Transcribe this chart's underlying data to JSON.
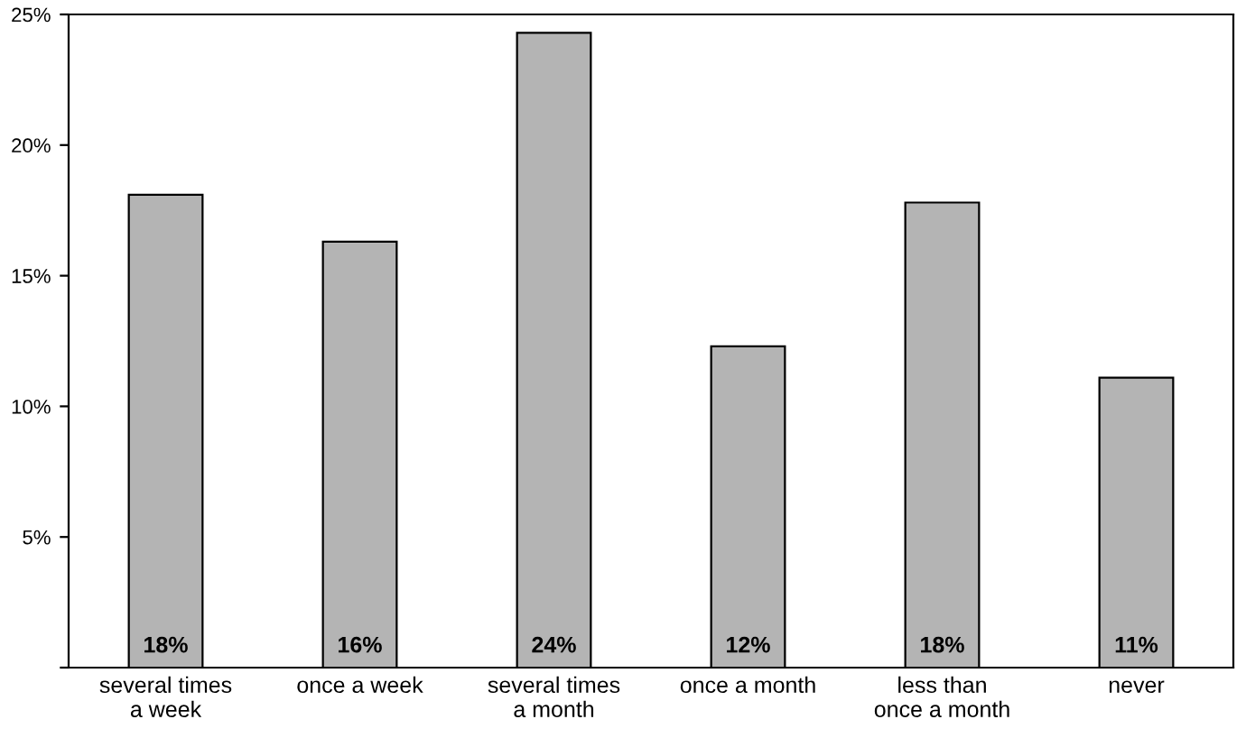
{
  "chart_data": {
    "type": "bar",
    "categories": [
      "several times\na week",
      "once a week",
      "several times\na month",
      "once a month",
      "less than\nonce a month",
      "never"
    ],
    "values": [
      18.1,
      16.3,
      24.3,
      12.3,
      17.8,
      11.1
    ],
    "value_labels": [
      "18%",
      "16%",
      "24%",
      "12%",
      "18%",
      "11%"
    ],
    "color": "#b4b4b4",
    "ylim": [
      0,
      25
    ],
    "yticks": [
      {
        "value": 0,
        "label": null
      },
      {
        "value": 5,
        "label": "5%"
      },
      {
        "value": 10,
        "label": "10%"
      },
      {
        "value": 15,
        "label": "15%"
      },
      {
        "value": 20,
        "label": "20%"
      },
      {
        "value": 25,
        "label": "25%"
      }
    ],
    "grid": false,
    "legend": false
  }
}
